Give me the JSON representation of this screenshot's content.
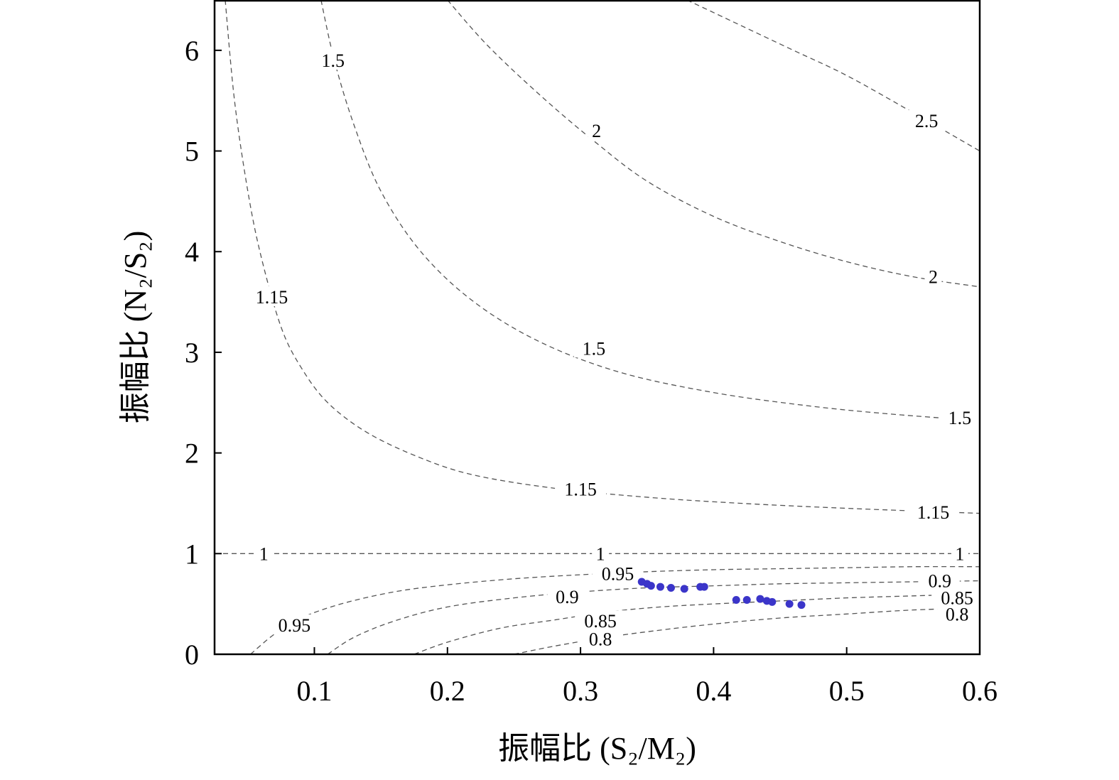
{
  "chart_data": {
    "type": "contour_scatter",
    "title": "",
    "xlabel": "振幅比 (S₂/M₂)",
    "ylabel": "振幅比 (N₂/S₂)",
    "xlim": [
      0.025,
      0.6
    ],
    "ylim": [
      0,
      6.5
    ],
    "x_ticks": [
      0.1,
      0.2,
      0.3,
      0.4,
      0.5,
      0.6
    ],
    "x_tick_labels": [
      "0.1",
      "0.2",
      "0.3",
      "0.4",
      "0.5",
      "0.6"
    ],
    "y_ticks": [
      0,
      1,
      2,
      3,
      4,
      5,
      6
    ],
    "y_tick_labels": [
      "0",
      "1",
      "2",
      "3",
      "4",
      "5",
      "6"
    ],
    "grid": false,
    "contour_style": "dashed",
    "contour_color": "#555555",
    "point_color": "#3b35c9",
    "contours": [
      {
        "level": "0.8",
        "points": [
          [
            0.25,
            0
          ],
          [
            0.28,
            0.08
          ],
          [
            0.32,
            0.17
          ],
          [
            0.36,
            0.24
          ],
          [
            0.4,
            0.3
          ],
          [
            0.45,
            0.36
          ],
          [
            0.5,
            0.4
          ],
          [
            0.55,
            0.44
          ],
          [
            0.6,
            0.46
          ]
        ],
        "labels": [
          {
            "text": "0.8",
            "x": 0.315,
            "y": 0.15
          },
          {
            "text": "0.8",
            "x": 0.583,
            "y": 0.4
          }
        ]
      },
      {
        "level": "0.85",
        "points": [
          [
            0.175,
            0
          ],
          [
            0.2,
            0.12
          ],
          [
            0.24,
            0.26
          ],
          [
            0.28,
            0.34
          ],
          [
            0.32,
            0.42
          ],
          [
            0.36,
            0.47
          ],
          [
            0.4,
            0.5
          ],
          [
            0.45,
            0.53
          ],
          [
            0.5,
            0.56
          ],
          [
            0.55,
            0.58
          ],
          [
            0.6,
            0.6
          ]
        ],
        "labels": [
          {
            "text": "0.85",
            "x": 0.315,
            "y": 0.33
          },
          {
            "text": "0.85",
            "x": 0.583,
            "y": 0.56
          }
        ]
      },
      {
        "level": "0.9",
        "points": [
          [
            0.11,
            0
          ],
          [
            0.13,
            0.17
          ],
          [
            0.16,
            0.33
          ],
          [
            0.2,
            0.47
          ],
          [
            0.25,
            0.56
          ],
          [
            0.3,
            0.62
          ],
          [
            0.35,
            0.66
          ],
          [
            0.4,
            0.68
          ],
          [
            0.45,
            0.7
          ],
          [
            0.5,
            0.71
          ],
          [
            0.55,
            0.72
          ],
          [
            0.6,
            0.73
          ]
        ],
        "labels": [
          {
            "text": "0.9",
            "x": 0.29,
            "y": 0.57
          },
          {
            "text": "0.9",
            "x": 0.57,
            "y": 0.73
          }
        ]
      },
      {
        "level": "0.95",
        "points": [
          [
            0.052,
            0
          ],
          [
            0.07,
            0.2
          ],
          [
            0.09,
            0.36
          ],
          [
            0.12,
            0.5
          ],
          [
            0.16,
            0.62
          ],
          [
            0.2,
            0.69
          ],
          [
            0.25,
            0.75
          ],
          [
            0.3,
            0.79
          ],
          [
            0.35,
            0.82
          ],
          [
            0.4,
            0.84
          ],
          [
            0.45,
            0.85
          ],
          [
            0.5,
            0.86
          ],
          [
            0.55,
            0.87
          ],
          [
            0.6,
            0.87
          ]
        ],
        "labels": [
          {
            "text": "0.95",
            "x": 0.085,
            "y": 0.29
          },
          {
            "text": "0.95",
            "x": 0.328,
            "y": 0.8
          }
        ]
      },
      {
        "level": "1",
        "points": [
          [
            0.025,
            1
          ],
          [
            0.6,
            1
          ]
        ],
        "labels": [
          {
            "text": "1",
            "x": 0.062,
            "y": 1.0
          },
          {
            "text": "1",
            "x": 0.315,
            "y": 1.0
          },
          {
            "text": "1",
            "x": 0.585,
            "y": 1.0
          }
        ]
      },
      {
        "level": "1.15",
        "points": [
          [
            0.033,
            6.5
          ],
          [
            0.04,
            5.5
          ],
          [
            0.05,
            4.6
          ],
          [
            0.06,
            3.95
          ],
          [
            0.075,
            3.25
          ],
          [
            0.09,
            2.85
          ],
          [
            0.11,
            2.5
          ],
          [
            0.14,
            2.2
          ],
          [
            0.18,
            1.95
          ],
          [
            0.22,
            1.78
          ],
          [
            0.28,
            1.65
          ],
          [
            0.35,
            1.56
          ],
          [
            0.42,
            1.5
          ],
          [
            0.5,
            1.45
          ],
          [
            0.6,
            1.4
          ]
        ],
        "labels": [
          {
            "text": "1.15",
            "x": 0.068,
            "y": 3.55
          },
          {
            "text": "1.15",
            "x": 0.3,
            "y": 1.64
          },
          {
            "text": "1.15",
            "x": 0.565,
            "y": 1.41
          }
        ]
      },
      {
        "level": "1.5",
        "points": [
          [
            0.105,
            6.5
          ],
          [
            0.115,
            5.9
          ],
          [
            0.13,
            5.25
          ],
          [
            0.15,
            4.6
          ],
          [
            0.18,
            4.0
          ],
          [
            0.22,
            3.5
          ],
          [
            0.27,
            3.1
          ],
          [
            0.33,
            2.8
          ],
          [
            0.4,
            2.6
          ],
          [
            0.47,
            2.47
          ],
          [
            0.53,
            2.39
          ],
          [
            0.6,
            2.32
          ]
        ],
        "labels": [
          {
            "text": "1.5",
            "x": 0.114,
            "y": 5.9
          },
          {
            "text": "1.5",
            "x": 0.31,
            "y": 3.04
          },
          {
            "text": "1.5",
            "x": 0.585,
            "y": 2.35
          }
        ]
      },
      {
        "level": "2",
        "points": [
          [
            0.2,
            6.5
          ],
          [
            0.23,
            6.05
          ],
          [
            0.27,
            5.55
          ],
          [
            0.31,
            5.1
          ],
          [
            0.35,
            4.7
          ],
          [
            0.4,
            4.35
          ],
          [
            0.45,
            4.1
          ],
          [
            0.5,
            3.9
          ],
          [
            0.55,
            3.75
          ],
          [
            0.6,
            3.65
          ]
        ],
        "labels": [
          {
            "text": "2",
            "x": 0.312,
            "y": 5.2
          },
          {
            "text": "2",
            "x": 0.565,
            "y": 3.75
          }
        ]
      },
      {
        "level": "2.5",
        "points": [
          [
            0.38,
            6.5
          ],
          [
            0.42,
            6.25
          ],
          [
            0.46,
            6.0
          ],
          [
            0.5,
            5.75
          ],
          [
            0.55,
            5.38
          ],
          [
            0.6,
            5.0
          ]
        ],
        "labels": [
          {
            "text": "2.5",
            "x": 0.56,
            "y": 5.3
          }
        ]
      }
    ],
    "series": [
      {
        "type": "scatter",
        "x": [
          0.346,
          0.35,
          0.353,
          0.36,
          0.368,
          0.378,
          0.39,
          0.393,
          0.417,
          0.425,
          0.435,
          0.44,
          0.444,
          0.457,
          0.466
        ],
        "y": [
          0.72,
          0.7,
          0.68,
          0.67,
          0.66,
          0.65,
          0.67,
          0.67,
          0.54,
          0.54,
          0.55,
          0.53,
          0.52,
          0.5,
          0.49
        ]
      }
    ]
  }
}
